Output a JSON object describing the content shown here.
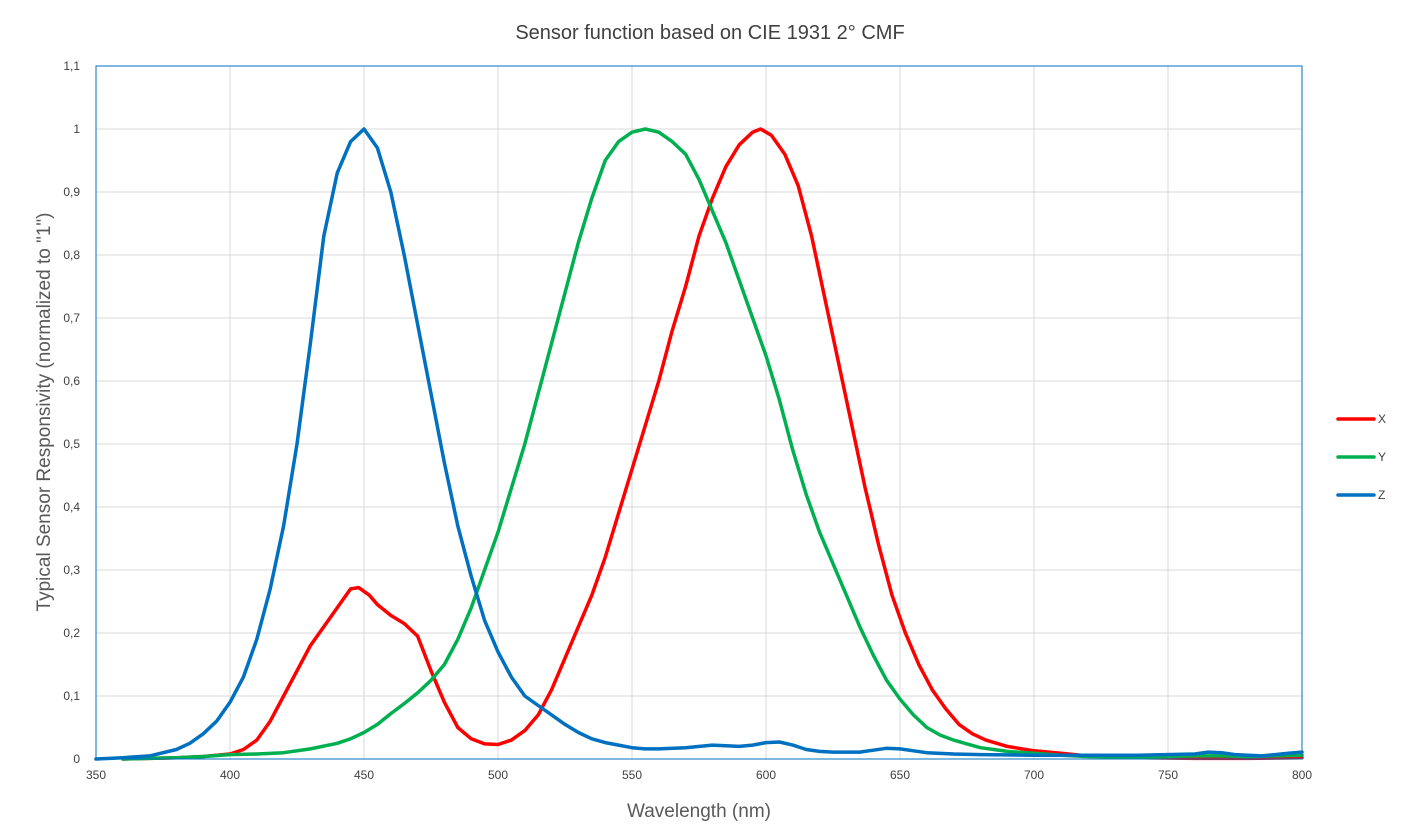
{
  "chart_data": {
    "type": "line",
    "title": "Sensor function based on CIE 1931 2° CMF",
    "xlabel": "Wavelength  (nm)",
    "ylabel": "Typical Sensor Responsivity  (normalized to \"1\")",
    "xlim": [
      350,
      800
    ],
    "ylim": [
      0,
      1.1
    ],
    "grid": true,
    "legend": "right",
    "x_ticks": [
      "350",
      "400",
      "450",
      "500",
      "550",
      "600",
      "650",
      "700",
      "750",
      "800"
    ],
    "y_ticks": [
      "0",
      "0,1",
      "0,2",
      "0,3",
      "0,4",
      "0,5",
      "0,6",
      "0,7",
      "0,8",
      "0,9",
      "1",
      "1,1"
    ],
    "series": [
      {
        "name": "X",
        "color": "#ff0000",
        "points": [
          [
            360,
            0
          ],
          [
            380,
            0.002
          ],
          [
            390,
            0.004
          ],
          [
            400,
            0.008
          ],
          [
            405,
            0.015
          ],
          [
            410,
            0.03
          ],
          [
            415,
            0.06
          ],
          [
            420,
            0.1
          ],
          [
            425,
            0.14
          ],
          [
            430,
            0.18
          ],
          [
            435,
            0.21
          ],
          [
            440,
            0.24
          ],
          [
            445,
            0.27
          ],
          [
            448,
            0.272
          ],
          [
            452,
            0.26
          ],
          [
            455,
            0.245
          ],
          [
            460,
            0.228
          ],
          [
            465,
            0.215
          ],
          [
            470,
            0.195
          ],
          [
            475,
            0.14
          ],
          [
            480,
            0.09
          ],
          [
            485,
            0.05
          ],
          [
            490,
            0.032
          ],
          [
            495,
            0.024
          ],
          [
            500,
            0.023
          ],
          [
            505,
            0.03
          ],
          [
            510,
            0.045
          ],
          [
            515,
            0.07
          ],
          [
            520,
            0.11
          ],
          [
            525,
            0.16
          ],
          [
            530,
            0.21
          ],
          [
            535,
            0.26
          ],
          [
            540,
            0.32
          ],
          [
            545,
            0.39
          ],
          [
            550,
            0.46
          ],
          [
            555,
            0.53
          ],
          [
            560,
            0.6
          ],
          [
            565,
            0.68
          ],
          [
            570,
            0.75
          ],
          [
            575,
            0.83
          ],
          [
            580,
            0.89
          ],
          [
            585,
            0.94
          ],
          [
            590,
            0.975
          ],
          [
            595,
            0.995
          ],
          [
            598,
            1.0
          ],
          [
            602,
            0.99
          ],
          [
            607,
            0.96
          ],
          [
            612,
            0.91
          ],
          [
            617,
            0.83
          ],
          [
            622,
            0.73
          ],
          [
            627,
            0.63
          ],
          [
            632,
            0.53
          ],
          [
            637,
            0.43
          ],
          [
            642,
            0.34
          ],
          [
            647,
            0.26
          ],
          [
            652,
            0.2
          ],
          [
            657,
            0.15
          ],
          [
            662,
            0.11
          ],
          [
            667,
            0.08
          ],
          [
            672,
            0.055
          ],
          [
            677,
            0.04
          ],
          [
            682,
            0.03
          ],
          [
            690,
            0.02
          ],
          [
            700,
            0.013
          ],
          [
            710,
            0.009
          ],
          [
            720,
            0.005
          ],
          [
            740,
            0.002
          ],
          [
            760,
            0.001
          ],
          [
            780,
            0.001
          ],
          [
            800,
            0.002
          ]
        ]
      },
      {
        "name": "Y",
        "color": "#00b050",
        "points": [
          [
            360,
            0
          ],
          [
            380,
            0.002
          ],
          [
            390,
            0.004
          ],
          [
            400,
            0.007
          ],
          [
            410,
            0.008
          ],
          [
            420,
            0.01
          ],
          [
            430,
            0.016
          ],
          [
            440,
            0.025
          ],
          [
            445,
            0.032
          ],
          [
            450,
            0.042
          ],
          [
            455,
            0.055
          ],
          [
            460,
            0.072
          ],
          [
            465,
            0.088
          ],
          [
            470,
            0.105
          ],
          [
            475,
            0.125
          ],
          [
            480,
            0.15
          ],
          [
            485,
            0.19
          ],
          [
            490,
            0.24
          ],
          [
            495,
            0.3
          ],
          [
            500,
            0.36
          ],
          [
            505,
            0.43
          ],
          [
            510,
            0.5
          ],
          [
            515,
            0.58
          ],
          [
            520,
            0.66
          ],
          [
            525,
            0.74
          ],
          [
            530,
            0.82
          ],
          [
            535,
            0.89
          ],
          [
            540,
            0.95
          ],
          [
            545,
            0.98
          ],
          [
            550,
            0.995
          ],
          [
            555,
            1.0
          ],
          [
            560,
            0.995
          ],
          [
            565,
            0.98
          ],
          [
            570,
            0.96
          ],
          [
            575,
            0.92
          ],
          [
            580,
            0.87
          ],
          [
            585,
            0.82
          ],
          [
            590,
            0.76
          ],
          [
            595,
            0.7
          ],
          [
            600,
            0.64
          ],
          [
            605,
            0.57
          ],
          [
            610,
            0.49
          ],
          [
            615,
            0.42
          ],
          [
            620,
            0.36
          ],
          [
            625,
            0.31
          ],
          [
            630,
            0.26
          ],
          [
            635,
            0.21
          ],
          [
            640,
            0.165
          ],
          [
            645,
            0.125
          ],
          [
            650,
            0.095
          ],
          [
            655,
            0.07
          ],
          [
            660,
            0.05
          ],
          [
            665,
            0.038
          ],
          [
            670,
            0.03
          ],
          [
            675,
            0.024
          ],
          [
            680,
            0.018
          ],
          [
            690,
            0.012
          ],
          [
            700,
            0.009
          ],
          [
            710,
            0.006
          ],
          [
            720,
            0.004
          ],
          [
            740,
            0.003
          ],
          [
            760,
            0.005
          ],
          [
            770,
            0.005
          ],
          [
            780,
            0.004
          ],
          [
            800,
            0.006
          ]
        ]
      },
      {
        "name": "Z",
        "color": "#0070c0",
        "points": [
          [
            350,
            0
          ],
          [
            360,
            0.002
          ],
          [
            370,
            0.005
          ],
          [
            380,
            0.015
          ],
          [
            385,
            0.025
          ],
          [
            390,
            0.04
          ],
          [
            395,
            0.06
          ],
          [
            400,
            0.09
          ],
          [
            405,
            0.13
          ],
          [
            410,
            0.19
          ],
          [
            415,
            0.27
          ],
          [
            420,
            0.37
          ],
          [
            425,
            0.5
          ],
          [
            430,
            0.66
          ],
          [
            435,
            0.83
          ],
          [
            440,
            0.93
          ],
          [
            445,
            0.98
          ],
          [
            450,
            1.0
          ],
          [
            455,
            0.97
          ],
          [
            460,
            0.9
          ],
          [
            465,
            0.8
          ],
          [
            470,
            0.69
          ],
          [
            475,
            0.58
          ],
          [
            480,
            0.47
          ],
          [
            485,
            0.37
          ],
          [
            490,
            0.29
          ],
          [
            495,
            0.22
          ],
          [
            500,
            0.17
          ],
          [
            505,
            0.13
          ],
          [
            510,
            0.1
          ],
          [
            515,
            0.085
          ],
          [
            520,
            0.07
          ],
          [
            525,
            0.055
          ],
          [
            530,
            0.042
          ],
          [
            535,
            0.032
          ],
          [
            540,
            0.026
          ],
          [
            545,
            0.022
          ],
          [
            550,
            0.018
          ],
          [
            555,
            0.016
          ],
          [
            560,
            0.016
          ],
          [
            570,
            0.018
          ],
          [
            580,
            0.022
          ],
          [
            590,
            0.02
          ],
          [
            595,
            0.022
          ],
          [
            600,
            0.026
          ],
          [
            605,
            0.027
          ],
          [
            610,
            0.022
          ],
          [
            615,
            0.015
          ],
          [
            620,
            0.012
          ],
          [
            625,
            0.011
          ],
          [
            635,
            0.011
          ],
          [
            640,
            0.014
          ],
          [
            645,
            0.017
          ],
          [
            650,
            0.016
          ],
          [
            655,
            0.013
          ],
          [
            660,
            0.01
          ],
          [
            670,
            0.008
          ],
          [
            680,
            0.007
          ],
          [
            700,
            0.006
          ],
          [
            720,
            0.006
          ],
          [
            740,
            0.006
          ],
          [
            760,
            0.008
          ],
          [
            765,
            0.011
          ],
          [
            770,
            0.01
          ],
          [
            775,
            0.007
          ],
          [
            780,
            0.006
          ],
          [
            785,
            0.005
          ],
          [
            790,
            0.007
          ],
          [
            795,
            0.009
          ],
          [
            800,
            0.011
          ]
        ]
      }
    ]
  }
}
